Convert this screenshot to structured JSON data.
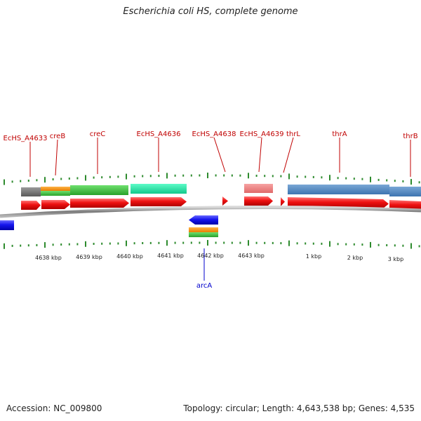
{
  "title": "Escherichia coli HS, complete genome",
  "accession_text": "Accession: NC_009800",
  "topology_text": "Topology: circular; Length: 4,643,538 bp; Genes: 4,535",
  "colors": {
    "backbone": "#8a8a8a",
    "tick": "#2e8b2e",
    "label_forward": "#c00000",
    "label_reverse": "#0000cc",
    "cds": "#e81010",
    "gene_cds": "#1a1aee"
  },
  "scale_labels": [
    "4638 kbp",
    "4639 kbp",
    "4640 kbp",
    "4641 kbp",
    "4642 kbp",
    "4643 kbp",
    "1 kbp",
    "2 kbp",
    "3 kbp"
  ],
  "forward_labels": [
    "EcHS_A4633",
    "creB",
    "creC",
    "EcHS_A4636",
    "EcHS_A4638",
    "EcHS_A4639",
    "thrL",
    "thrA",
    "thrB"
  ],
  "reverse_labels": [
    "arcA"
  ]
}
